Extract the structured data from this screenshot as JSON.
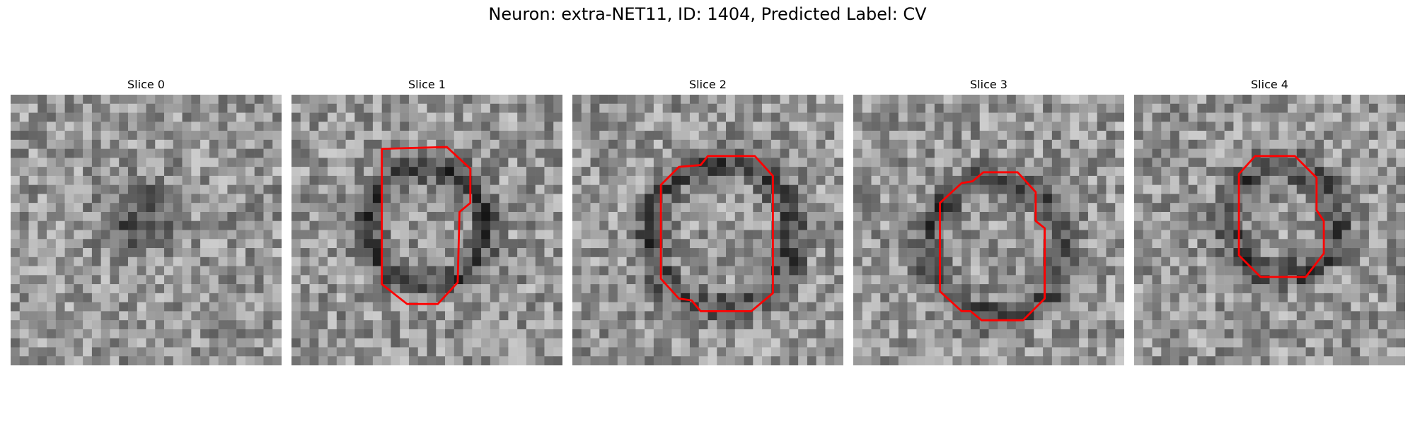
{
  "figure": {
    "title": "Neuron: extra-NET11, ID: 1404, Predicted Label: CV",
    "contour_color": "#ff0000",
    "panels": [
      {
        "title": "Slice 0",
        "has_contour": false,
        "seed": 11
      },
      {
        "title": "Slice 1",
        "has_contour": true,
        "seed": 23
      },
      {
        "title": "Slice 2",
        "has_contour": true,
        "seed": 37
      },
      {
        "title": "Slice 3",
        "has_contour": true,
        "seed": 51
      },
      {
        "title": "Slice 4",
        "has_contour": true,
        "seed": 68
      }
    ]
  }
}
